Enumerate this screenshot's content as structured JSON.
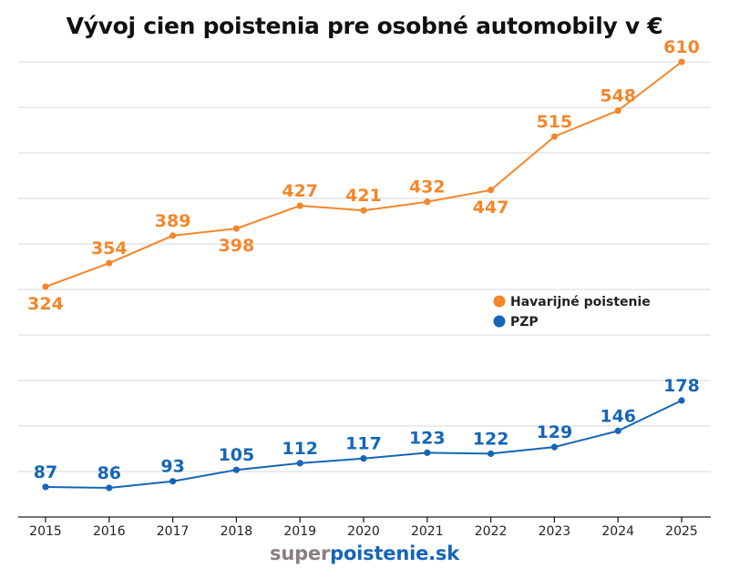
{
  "chart_data": {
    "type": "line",
    "title": "Vývoj cien poistenia pre osobné automobily v €",
    "x": [
      "2015",
      "2016",
      "2017",
      "2018",
      "2019",
      "2020",
      "2021",
      "2022",
      "2023",
      "2024",
      "2025"
    ],
    "series": [
      {
        "name": "Havarijné poistenie",
        "color": "#f5862a",
        "values": [
          324,
          354,
          389,
          398,
          427,
          421,
          432,
          447,
          515,
          548,
          610
        ]
      },
      {
        "name": "PZP",
        "color": "#1565b8",
        "values": [
          87,
          86,
          93,
          105,
          112,
          117,
          123,
          122,
          129,
          146,
          178
        ]
      }
    ],
    "legend_position": "right",
    "grid": true
  },
  "footer": {
    "brand_prefix": "super",
    "brand_suffix": "poistenie.sk"
  }
}
